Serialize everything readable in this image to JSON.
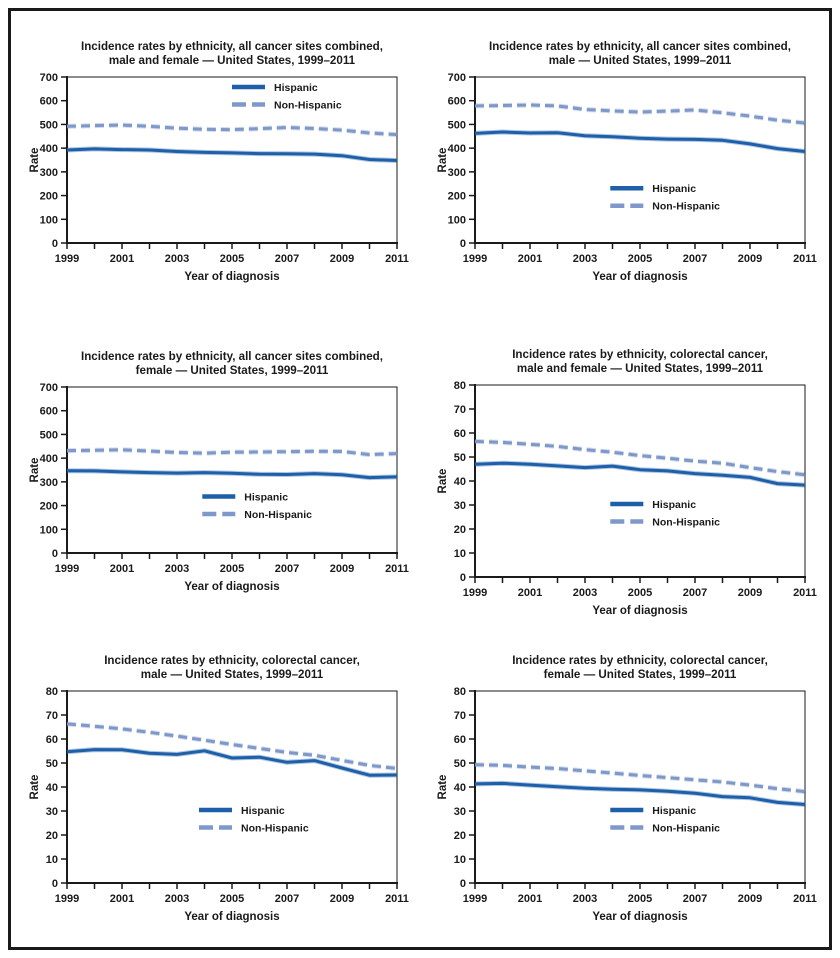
{
  "figure": {
    "background": "#ffffff",
    "frame_color": "#1a1a1a",
    "text_color": "#1a1a1a"
  },
  "chart_data": [
    {
      "type": "line",
      "title_line1": "Incidence rates by ethnicity, all cancer sites combined,",
      "title_line2": "male and female — United States, 1999–2011",
      "xlabel": "Year of diagnosis",
      "ylabel": "Rate",
      "x": [
        1999,
        2000,
        2001,
        2002,
        2003,
        2004,
        2005,
        2006,
        2007,
        2008,
        2009,
        2010,
        2011
      ],
      "x_tick_labels": [
        "1999",
        "2001",
        "2003",
        "2005",
        "2007",
        "2009",
        "2011"
      ],
      "ylim": [
        0,
        700
      ],
      "ytick_step": 100,
      "grid": false,
      "legend_pos": {
        "fx": 0.5,
        "fy": 0.06
      },
      "series": [
        {
          "name": "Hispanic",
          "style": "solid",
          "color": "#1e5fa9",
          "values": [
            392,
            397,
            394,
            392,
            386,
            382,
            380,
            377,
            376,
            375,
            368,
            352,
            348
          ]
        },
        {
          "name": "Non-Hispanic",
          "style": "dashed",
          "color": "#7d98c9",
          "values": [
            492,
            495,
            497,
            492,
            484,
            479,
            478,
            482,
            487,
            483,
            476,
            464,
            457
          ]
        }
      ]
    },
    {
      "type": "line",
      "title_line1": "Incidence rates by ethnicity, all cancer sites combined,",
      "title_line2": "male — United States, 1999–2011",
      "xlabel": "Year of diagnosis",
      "ylabel": "Rate",
      "x": [
        1999,
        2000,
        2001,
        2002,
        2003,
        2004,
        2005,
        2006,
        2007,
        2008,
        2009,
        2010,
        2011
      ],
      "x_tick_labels": [
        "1999",
        "2001",
        "2003",
        "2005",
        "2007",
        "2009",
        "2011"
      ],
      "ylim": [
        0,
        700
      ],
      "ytick_step": 100,
      "grid": false,
      "legend_pos": {
        "fx": 0.41,
        "fy": 0.67
      },
      "series": [
        {
          "name": "Hispanic",
          "style": "solid",
          "color": "#1e5fa9",
          "values": [
            462,
            468,
            464,
            465,
            452,
            448,
            442,
            438,
            437,
            433,
            418,
            398,
            386
          ]
        },
        {
          "name": "Non-Hispanic",
          "style": "dashed",
          "color": "#7d98c9",
          "values": [
            578,
            580,
            582,
            578,
            563,
            557,
            552,
            556,
            561,
            549,
            535,
            518,
            506
          ]
        }
      ]
    },
    {
      "type": "line",
      "title_line1": "Incidence rates by ethnicity, all cancer sites combined,",
      "title_line2": "female — United States, 1999–2011",
      "xlabel": "Year of diagnosis",
      "ylabel": "Rate",
      "x": [
        1999,
        2000,
        2001,
        2002,
        2003,
        2004,
        2005,
        2006,
        2007,
        2008,
        2009,
        2010,
        2011
      ],
      "x_tick_labels": [
        "1999",
        "2001",
        "2003",
        "2005",
        "2007",
        "2009",
        "2011"
      ],
      "ylim": [
        0,
        700
      ],
      "ytick_step": 100,
      "grid": false,
      "legend_pos": {
        "fx": 0.41,
        "fy": 0.66
      },
      "series": [
        {
          "name": "Hispanic",
          "style": "solid",
          "color": "#1e5fa9",
          "values": [
            347,
            346,
            342,
            339,
            337,
            339,
            336,
            332,
            331,
            335,
            330,
            318,
            321
          ]
        },
        {
          "name": "Non-Hispanic",
          "style": "dashed",
          "color": "#7d98c9",
          "values": [
            432,
            433,
            435,
            430,
            424,
            421,
            425,
            426,
            427,
            429,
            428,
            415,
            419
          ]
        }
      ]
    },
    {
      "type": "line",
      "title_line1": "Incidence rates by ethnicity, colorectal cancer,",
      "title_line2": "male and female — United States, 1999–2011",
      "xlabel": "Year of diagnosis",
      "ylabel": "Rate",
      "x": [
        1999,
        2000,
        2001,
        2002,
        2003,
        2004,
        2005,
        2006,
        2007,
        2008,
        2009,
        2010,
        2011
      ],
      "x_tick_labels": [
        "1999",
        "2001",
        "2003",
        "2005",
        "2007",
        "2009",
        "2011"
      ],
      "ylim": [
        0,
        80
      ],
      "ytick_step": 10,
      "grid": false,
      "legend_pos": {
        "fx": 0.41,
        "fy": 0.62
      },
      "series": [
        {
          "name": "Hispanic",
          "style": "solid",
          "color": "#1e5fa9",
          "values": [
            47.0,
            47.4,
            47.0,
            46.3,
            45.6,
            46.2,
            44.7,
            44.2,
            43.1,
            42.4,
            41.5,
            38.9,
            38.3
          ]
        },
        {
          "name": "Non-Hispanic",
          "style": "dashed",
          "color": "#7d98c9",
          "values": [
            56.5,
            56.1,
            55.3,
            54.4,
            53.1,
            52.0,
            50.6,
            49.5,
            48.3,
            47.4,
            45.6,
            43.9,
            42.6
          ]
        }
      ]
    },
    {
      "type": "line",
      "title_line1": "Incidence rates by ethnicity, colorectal cancer,",
      "title_line2": "male — United States, 1999–2011",
      "xlabel": "Year of diagnosis",
      "ylabel": "Rate",
      "x": [
        1999,
        2000,
        2001,
        2002,
        2003,
        2004,
        2005,
        2006,
        2007,
        2008,
        2009,
        2010,
        2011
      ],
      "x_tick_labels": [
        "1999",
        "2001",
        "2003",
        "2005",
        "2007",
        "2009",
        "2011"
      ],
      "ylim": [
        0,
        80
      ],
      "ytick_step": 10,
      "grid": false,
      "legend_pos": {
        "fx": 0.4,
        "fy": 0.62
      },
      "series": [
        {
          "name": "Hispanic",
          "style": "solid",
          "color": "#1e5fa9",
          "values": [
            54.7,
            55.6,
            55.5,
            54.1,
            53.6,
            55.1,
            52.1,
            52.4,
            50.3,
            51.0,
            47.9,
            44.9,
            45.0
          ]
        },
        {
          "name": "Non-Hispanic",
          "style": "dashed",
          "color": "#7d98c9",
          "values": [
            66.3,
            65.3,
            64.2,
            62.8,
            61.2,
            59.5,
            57.7,
            56.1,
            54.4,
            53.2,
            51.1,
            49.0,
            47.7
          ]
        }
      ]
    },
    {
      "type": "line",
      "title_line1": "Incidence rates by ethnicity, colorectal cancer,",
      "title_line2": "female — United States, 1999–2011",
      "xlabel": "Year of diagnosis",
      "ylabel": "Rate",
      "x": [
        1999,
        2000,
        2001,
        2002,
        2003,
        2004,
        2005,
        2006,
        2007,
        2008,
        2009,
        2010,
        2011
      ],
      "x_tick_labels": [
        "1999",
        "2001",
        "2003",
        "2005",
        "2007",
        "2009",
        "2011"
      ],
      "ylim": [
        0,
        80
      ],
      "ytick_step": 10,
      "grid": false,
      "legend_pos": {
        "fx": 0.41,
        "fy": 0.62
      },
      "series": [
        {
          "name": "Hispanic",
          "style": "solid",
          "color": "#1e5fa9",
          "values": [
            41.3,
            41.5,
            40.8,
            40.1,
            39.5,
            39.1,
            38.8,
            38.2,
            37.4,
            36.0,
            35.5,
            33.6,
            32.7
          ]
        },
        {
          "name": "Non-Hispanic",
          "style": "dashed",
          "color": "#7d98c9",
          "values": [
            49.3,
            49.0,
            48.3,
            47.7,
            46.7,
            45.8,
            44.8,
            43.9,
            43.0,
            42.1,
            40.8,
            39.3,
            38.1
          ]
        }
      ]
    }
  ]
}
